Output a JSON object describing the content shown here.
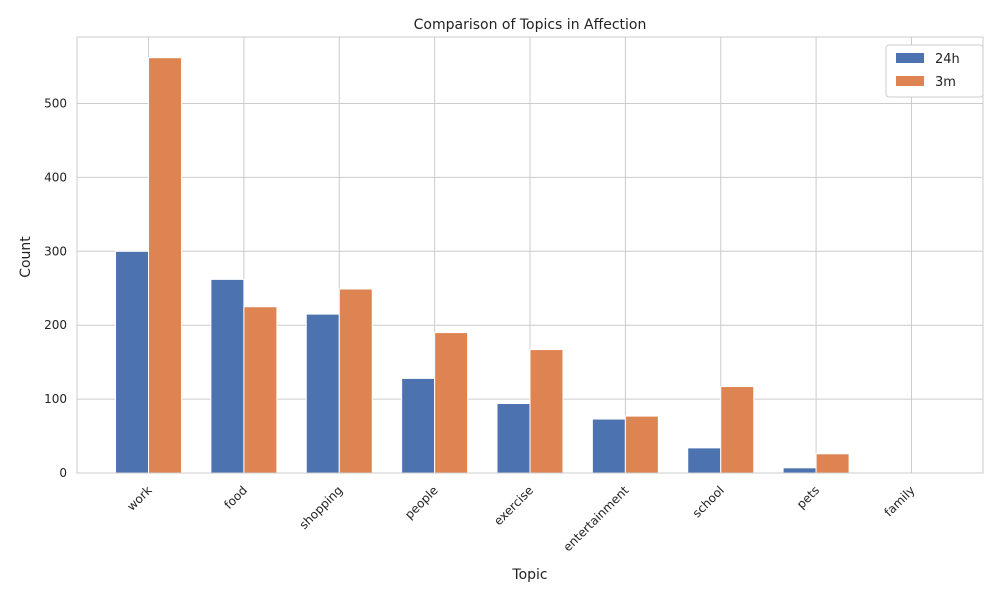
{
  "chart_data": {
    "type": "bar",
    "title": "Comparison of Topics in Affection",
    "xlabel": "Topic",
    "ylabel": "Count",
    "categories": [
      "work",
      "food",
      "shopping",
      "people",
      "exercise",
      "entertainment",
      "school",
      "pets",
      "family"
    ],
    "series": [
      {
        "name": "24h",
        "color": "#4c72b0",
        "values": [
          300,
          262,
          215,
          128,
          94,
          73,
          34,
          7,
          0
        ]
      },
      {
        "name": "3m",
        "color": "#dd8452",
        "values": [
          562,
          225,
          249,
          190,
          167,
          77,
          117,
          26,
          0
        ]
      }
    ],
    "ylim": [
      0,
      590
    ],
    "yticks": [
      0,
      100,
      200,
      300,
      400,
      500
    ],
    "grid": true,
    "legend": "top-right"
  }
}
